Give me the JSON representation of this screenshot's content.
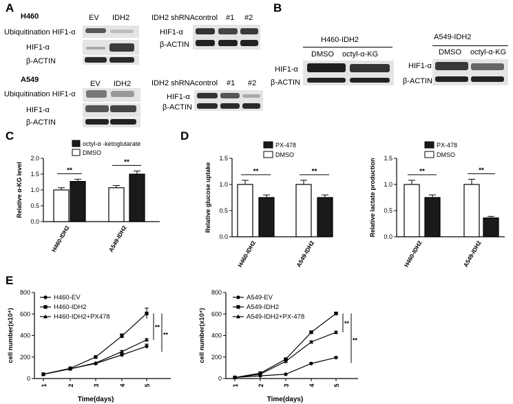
{
  "panels": {
    "A": "A",
    "B": "B",
    "C": "C",
    "D": "D",
    "E": "E"
  },
  "blotA": {
    "h460": {
      "cell": "H460",
      "col_ev": "EV",
      "col_idh2": "IDH2",
      "row_ub": "Ubiquitination HIF1-α",
      "row_hif": "HIF1-α",
      "row_actin": "β-ACTIN",
      "sh_header": "IDH2 shRNA",
      "sh_cols": [
        "control",
        "#1",
        "#2"
      ],
      "sh_hif": "HIF1-α",
      "sh_actin": "β-ACTIN"
    },
    "a549": {
      "cell": "A549",
      "col_ev": "EV",
      "col_idh2": "IDH2",
      "row_ub": "Ubiquitination HIF1-α",
      "row_hif": "HIF1-α",
      "row_actin": "β-ACTIN",
      "sh_header": "IDH2 shRNA",
      "sh_cols": [
        "control",
        "#1",
        "#2"
      ],
      "sh_hif": "HIF1-α",
      "sh_actin": "β-ACTIN"
    }
  },
  "blotB": {
    "left": {
      "title": "H460-IDH2",
      "col1": "DMSO",
      "col2": "octyl-α-KG",
      "row_hif": "HIF1-α",
      "row_actin": "β-ACTIN"
    },
    "right": {
      "title": "A549-IDH2",
      "col1": "DMSO",
      "col2": "octyl-α-KG",
      "row_hif": "HIF1-α",
      "row_actin": "β-ACTIN"
    }
  },
  "colors": {
    "black_bar": "#1a1a1a",
    "white_bar": "#ffffff",
    "band_dark": "#2a2a2a"
  },
  "chart_data": [
    {
      "id": "C",
      "type": "bar",
      "categories": [
        "H460-IDH2",
        "A549-IDH2"
      ],
      "ylabel": "Relative α-KG level",
      "ylim": [
        0,
        2.0
      ],
      "yticks": [
        "0.0",
        "0.5",
        "1.0",
        "1.5",
        "2.0"
      ],
      "series": [
        {
          "name": "DMSO",
          "color": "#ffffff",
          "values": [
            1.0,
            1.07
          ],
          "errors": [
            0.07,
            0.07
          ]
        },
        {
          "name": "octyl-α -ketoglutarate",
          "color": "#1a1a1a",
          "values": [
            1.27,
            1.5
          ],
          "errors": [
            0.07,
            0.1
          ]
        }
      ],
      "significance": [
        "**",
        "**"
      ],
      "legend": "top-left"
    },
    {
      "id": "D1",
      "type": "bar",
      "categories": [
        "H460-IDH2",
        "A549-IDH2"
      ],
      "ylabel": "Relative glucose uptake",
      "ylim": [
        0,
        1.5
      ],
      "yticks": [
        "0.0",
        "0.5",
        "1.0",
        "1.5"
      ],
      "series": [
        {
          "name": "DMSO",
          "color": "#ffffff",
          "values": [
            1.0,
            1.0
          ],
          "errors": [
            0.08,
            0.08
          ]
        },
        {
          "name": "PX-478",
          "color": "#1a1a1a",
          "values": [
            0.75,
            0.75
          ],
          "errors": [
            0.05,
            0.05
          ]
        }
      ],
      "significance": [
        "**",
        "**"
      ],
      "legend": "top-center"
    },
    {
      "id": "D2",
      "type": "bar",
      "categories": [
        "H460-IDH2",
        "A549-IDH2"
      ],
      "ylabel": "Relative lactate production",
      "ylim": [
        0,
        1.5
      ],
      "yticks": [
        "0.0",
        "0.5",
        "1.0",
        "1.5"
      ],
      "series": [
        {
          "name": "DMSO",
          "color": "#ffffff",
          "values": [
            1.0,
            1.0
          ],
          "errors": [
            0.08,
            0.1
          ]
        },
        {
          "name": "PX-478",
          "color": "#1a1a1a",
          "values": [
            0.75,
            0.36
          ],
          "errors": [
            0.05,
            0.03
          ]
        }
      ],
      "significance": [
        "**",
        "**"
      ],
      "legend": "top-right"
    },
    {
      "id": "E1",
      "type": "line",
      "x": [
        1,
        2,
        3,
        4,
        5
      ],
      "xticks": [
        "1",
        "2",
        "3",
        "4",
        "5"
      ],
      "xlabel": "Time(days)",
      "ylabel": "cell number(x10⁴)",
      "ylim": [
        0,
        800
      ],
      "yticks": [
        "0",
        "200",
        "400",
        "600",
        "800"
      ],
      "series": [
        {
          "name": "H460-EV",
          "marker": "circle",
          "values": [
            40,
            90,
            140,
            220,
            300
          ],
          "errors": [
            0,
            0,
            0,
            10,
            20
          ]
        },
        {
          "name": "H460-IDH2",
          "marker": "square",
          "values": [
            40,
            95,
            200,
            395,
            605
          ],
          "errors": [
            0,
            0,
            0,
            20,
            50
          ]
        },
        {
          "name": "H460-IDH2+PX478",
          "marker": "triangle",
          "values": [
            40,
            90,
            145,
            250,
            360
          ],
          "errors": [
            0,
            0,
            0,
            10,
            10
          ]
        }
      ],
      "significance": [
        "**",
        "**"
      ],
      "legend": "top-left"
    },
    {
      "id": "E2",
      "type": "line",
      "x": [
        1,
        2,
        3,
        4,
        5
      ],
      "xticks": [
        "1",
        "2",
        "3",
        "4",
        "5"
      ],
      "xlabel": "Time(days)",
      "ylabel": "cell number(x10⁴)",
      "ylim": [
        0,
        800
      ],
      "yticks": [
        "0",
        "200",
        "400",
        "600",
        "800"
      ],
      "series": [
        {
          "name": "A549-EV",
          "marker": "circle",
          "values": [
            10,
            25,
            40,
            140,
            195
          ],
          "errors": [
            0,
            0,
            0,
            5,
            5
          ]
        },
        {
          "name": "A549-IDH2",
          "marker": "square",
          "values": [
            10,
            50,
            180,
            430,
            605
          ],
          "errors": [
            0,
            0,
            5,
            10,
            10
          ]
        },
        {
          "name": "A549-IDH2+PX-478",
          "marker": "triangle",
          "values": [
            10,
            40,
            160,
            340,
            430
          ],
          "errors": [
            0,
            0,
            5,
            10,
            10
          ]
        }
      ],
      "significance": [
        "**",
        "**"
      ],
      "legend": "top-left"
    }
  ]
}
